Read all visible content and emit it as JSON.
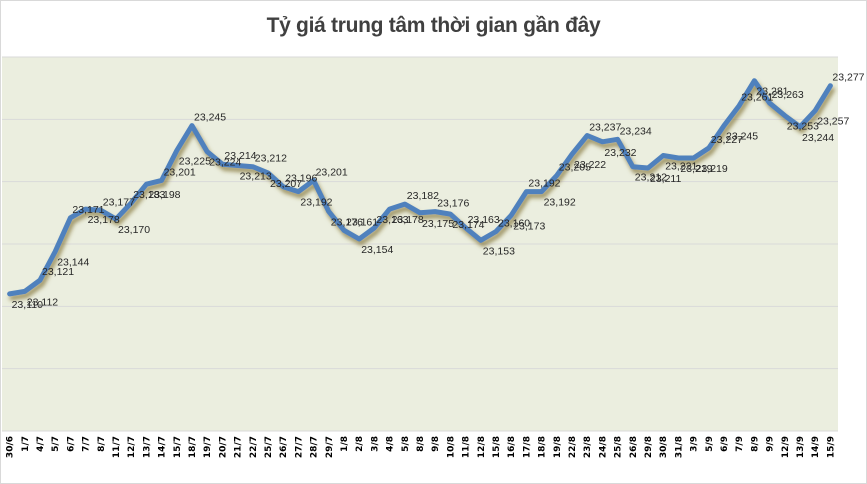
{
  "chart_data": {
    "type": "line",
    "title": "Tỷ giá trung tâm thời gian gần đây",
    "xlabel": "",
    "ylabel": "",
    "ylim": [
      23000,
      23300
    ],
    "grid": true,
    "legend": "none",
    "categories": [
      "30/6",
      "1/7",
      "4/7",
      "5/7",
      "6/7",
      "7/7",
      "8/7",
      "11/7",
      "12/7",
      "13/7",
      "14/7",
      "15/7",
      "18/7",
      "19/7",
      "20/7",
      "21/7",
      "22/7",
      "25/7",
      "26/7",
      "27/7",
      "28/7",
      "29/7",
      "1/8",
      "2/8",
      "3/8",
      "4/8",
      "5/8",
      "8/8",
      "9/8",
      "10/8",
      "11/8",
      "12/8",
      "15/8",
      "16/8",
      "17/8",
      "18/8",
      "19/8",
      "22/8",
      "23/8",
      "24/8",
      "25/8",
      "26/8",
      "29/8",
      "30/8",
      "31/8",
      "3/9",
      "5/9",
      "6/9",
      "7/9",
      "8/9",
      "9/9",
      "12/9",
      "13/9",
      "14/9",
      "15/9"
    ],
    "series": [
      {
        "name": "Tỷ giá trung tâm",
        "color": "#4f81bd",
        "values": [
          23110,
          23112,
          23121,
          23144,
          23171,
          23178,
          23177,
          23170,
          23183,
          23198,
          23201,
          23225,
          23245,
          23224,
          23214,
          23213,
          23212,
          23207,
          23196,
          23192,
          23201,
          23176,
          23161,
          23154,
          23163,
          23178,
          23182,
          23175,
          23176,
          23174,
          23163,
          23153,
          23160,
          23173,
          23192,
          23192,
          23205,
          23222,
          23237,
          23232,
          23234,
          23212,
          23211,
          23221,
          23219,
          23219,
          23227,
          23245,
          23261,
          23281,
          23263,
          23253,
          23244,
          23257,
          23277
        ]
      }
    ],
    "plot_background": "#ebeedf",
    "gridline_color": "#d9d9d9"
  }
}
